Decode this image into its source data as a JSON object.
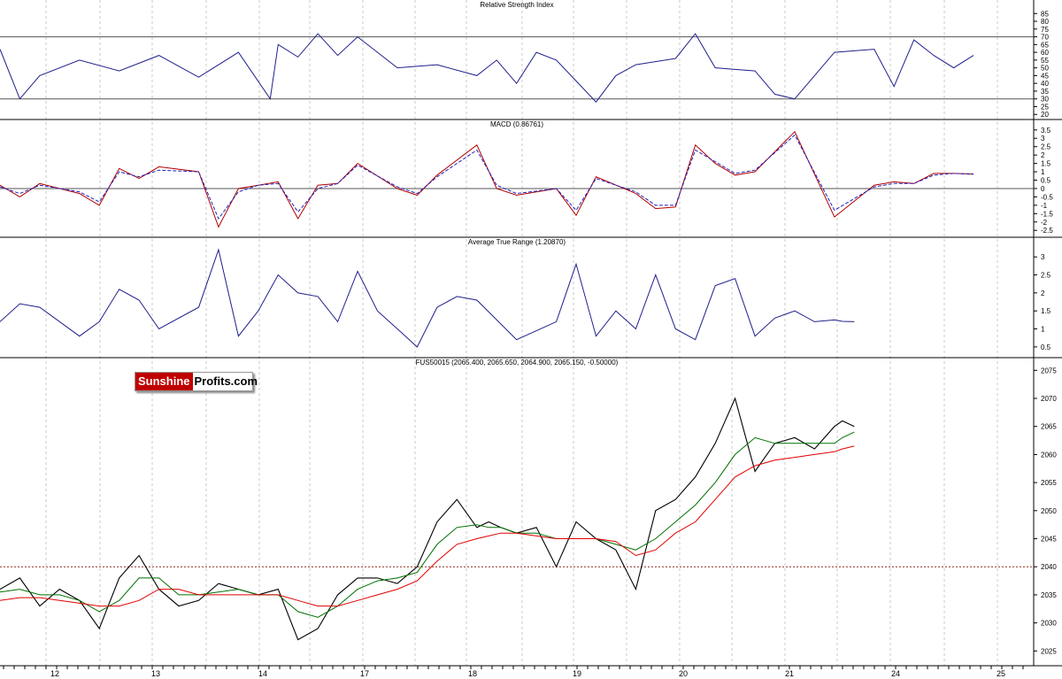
{
  "logo": {
    "part1": "Sunshine",
    "part2": "Profits.com"
  },
  "colors": {
    "rsi": "#1f1f8c",
    "macd": "#b00000",
    "signal": "#2020c0",
    "atr": "#1f1f8c",
    "price": "#000000",
    "ma_fast": "#007000",
    "ma_slow": "#e00000",
    "support": "#8b2a1a",
    "grid": "#c8c8c8"
  },
  "chart_data": [
    {
      "type": "line",
      "title": "Relative Strength Index",
      "yticks": [
        85,
        80,
        75,
        70,
        65,
        60,
        55,
        50,
        45,
        40,
        35,
        30,
        25,
        20
      ],
      "ylim": [
        19,
        88
      ],
      "hlines": [
        70,
        30
      ],
      "x": [
        0,
        0.5,
        1,
        2,
        3,
        4,
        5,
        6,
        6.8,
        7,
        7.5,
        8,
        8.5,
        9,
        10,
        11,
        12,
        12.5,
        13,
        13.5,
        14,
        15,
        15.5,
        16,
        17,
        17.5,
        18,
        19,
        19.5,
        20,
        21,
        22,
        22.5,
        23,
        23.5,
        24,
        24.5
      ],
      "series": [
        {
          "values": [
            62,
            30,
            45,
            55,
            48,
            58,
            44,
            60,
            30,
            65,
            57,
            72,
            58,
            70,
            50,
            52,
            45,
            55,
            40,
            60,
            55,
            28,
            45,
            52,
            56,
            72,
            50,
            48,
            33,
            30,
            60,
            62,
            38,
            68,
            58,
            50,
            58
          ]
        }
      ]
    },
    {
      "type": "line",
      "title": "MACD (0.86761)",
      "yticks": [
        3.5,
        3.0,
        2.5,
        2.0,
        1.5,
        1.0,
        0.5,
        0.0,
        -0.5,
        -1.0,
        -1.5,
        -2.0,
        -2.5
      ],
      "ylim": [
        -2.7,
        3.7
      ],
      "hlines": [
        0
      ],
      "x": [
        0,
        0.5,
        1,
        2,
        2.5,
        3,
        3.5,
        4,
        5,
        5.5,
        6,
        6.5,
        7,
        7.5,
        8,
        8.5,
        9,
        10,
        10.5,
        11,
        12,
        12.5,
        13,
        14,
        14.5,
        15,
        16,
        16.5,
        17,
        17.5,
        18,
        18.5,
        19,
        20,
        21,
        22,
        22.5,
        23,
        23.5,
        24,
        24.5
      ],
      "series": [
        {
          "values": [
            0.2,
            -0.5,
            0.3,
            -0.3,
            -1.0,
            1.2,
            0.6,
            1.3,
            1.0,
            -2.3,
            0,
            0.2,
            0.4,
            -1.8,
            0.2,
            0.3,
            1.5,
            0,
            -0.4,
            0.8,
            2.6,
            0,
            -0.4,
            0,
            -1.6,
            0.7,
            -0.3,
            -1.2,
            -1.1,
            2.6,
            1.5,
            0.8,
            1.0,
            3.4,
            -1.7,
            0.2,
            0.4,
            0.3,
            0.9,
            0.9,
            0.87
          ]
        },
        {
          "values": [
            0.1,
            -0.3,
            0.2,
            -0.2,
            -0.8,
            1.0,
            0.7,
            1.1,
            1.0,
            -1.8,
            -0.2,
            0.2,
            0.3,
            -1.4,
            0,
            0.3,
            1.4,
            0.1,
            -0.3,
            0.7,
            2.3,
            0.2,
            -0.3,
            0,
            -1.3,
            0.6,
            -0.2,
            -1.0,
            -1.0,
            2.3,
            1.6,
            0.9,
            1.1,
            3.2,
            -1.3,
            0.1,
            0.3,
            0.3,
            0.8,
            0.9,
            0.85
          ]
        }
      ]
    },
    {
      "type": "line",
      "title": "Average True Range (1.20870)",
      "yticks": [
        3.0,
        2.5,
        2.0,
        1.5,
        1.0,
        0.5
      ],
      "ylim": [
        0.3,
        3.3
      ],
      "x": [
        0,
        0.5,
        1,
        2,
        2.5,
        3,
        3.5,
        4,
        5,
        5.5,
        6,
        6.5,
        7,
        7.5,
        8,
        8.5,
        9,
        9.5,
        10,
        10.5,
        11,
        11.5,
        12,
        13,
        14,
        14.5,
        15,
        15.5,
        16,
        16.5,
        17,
        17.5,
        18,
        18.5,
        19,
        19.5,
        20,
        20.5,
        21,
        21.2,
        21.5
      ],
      "series": [
        {
          "values": [
            1.2,
            1.7,
            1.6,
            0.8,
            1.2,
            2.1,
            1.8,
            1.0,
            1.6,
            3.2,
            0.8,
            1.5,
            2.5,
            2.0,
            1.9,
            1.2,
            2.6,
            1.5,
            1.0,
            0.5,
            1.6,
            1.9,
            1.8,
            0.7,
            1.2,
            2.8,
            0.8,
            1.5,
            1.0,
            2.5,
            1.0,
            0.7,
            2.2,
            2.4,
            0.8,
            1.3,
            1.5,
            1.2,
            1.25,
            1.21,
            1.2
          ]
        }
      ]
    },
    {
      "type": "line",
      "title": "FUS50015 (2065.400, 2065.650, 2064.900, 2065.150, -0.50000)",
      "yticks": [
        2075,
        2070,
        2065,
        2060,
        2055,
        2050,
        2045,
        2040,
        2035,
        2030,
        2025
      ],
      "ylim": [
        2023,
        2076
      ],
      "hlines": [
        2040
      ],
      "xticks": [
        "12",
        "13",
        "14",
        "17",
        "18",
        "19",
        "20",
        "21",
        "24",
        "25"
      ],
      "x": [
        0,
        0.5,
        1,
        1.5,
        2,
        2.5,
        3,
        3.5,
        4,
        4.5,
        5,
        5.5,
        6,
        6.5,
        7,
        7.5,
        8,
        8.5,
        9,
        9.5,
        10,
        10.5,
        11,
        11.5,
        12,
        12.3,
        12.6,
        13,
        13.5,
        14,
        14.5,
        15,
        15.5,
        16,
        16.5,
        17,
        17.5,
        18,
        18.5,
        19,
        19.5,
        20,
        20.5,
        21,
        21.2,
        21.5
      ],
      "series": [
        {
          "values": [
            2036,
            2038,
            2033,
            2036,
            2034,
            2029,
            2038,
            2042,
            2036,
            2033,
            2034,
            2037,
            2036,
            2035,
            2036,
            2027,
            2029,
            2035,
            2038,
            2038,
            2037,
            2040,
            2048,
            2052,
            2047,
            2048,
            2047,
            2046,
            2047,
            2040,
            2048,
            2045,
            2043,
            2036,
            2050,
            2052,
            2056,
            2062,
            2070,
            2057,
            2062,
            2063,
            2061,
            2065,
            2066,
            2065
          ]
        },
        {
          "values": [
            2035.5,
            2036,
            2035,
            2035,
            2034,
            2032,
            2034,
            2038,
            2038,
            2035,
            2035,
            2035.5,
            2036,
            2035,
            2035,
            2032,
            2031,
            2033,
            2036,
            2037.5,
            2038,
            2039,
            2044,
            2047,
            2047.5,
            2047,
            2047,
            2046,
            2046,
            2045,
            2045,
            2045,
            2044,
            2043,
            2045,
            2048,
            2051,
            2055,
            2060,
            2063,
            2062,
            2062,
            2062,
            2062,
            2063,
            2064
          ]
        },
        {
          "values": [
            2034,
            2034.5,
            2034.5,
            2034,
            2033.5,
            2033,
            2033,
            2034,
            2036,
            2036,
            2035,
            2035,
            2035,
            2035,
            2035,
            2034,
            2033,
            2033,
            2034,
            2035,
            2036,
            2037.5,
            2041,
            2044,
            2045,
            2045.5,
            2046,
            2046,
            2045.5,
            2045,
            2045,
            2045,
            2044.5,
            2042,
            2043,
            2046,
            2048,
            2052,
            2056,
            2058,
            2059,
            2059.5,
            2060,
            2060.5,
            2061,
            2061.5
          ]
        }
      ]
    }
  ]
}
